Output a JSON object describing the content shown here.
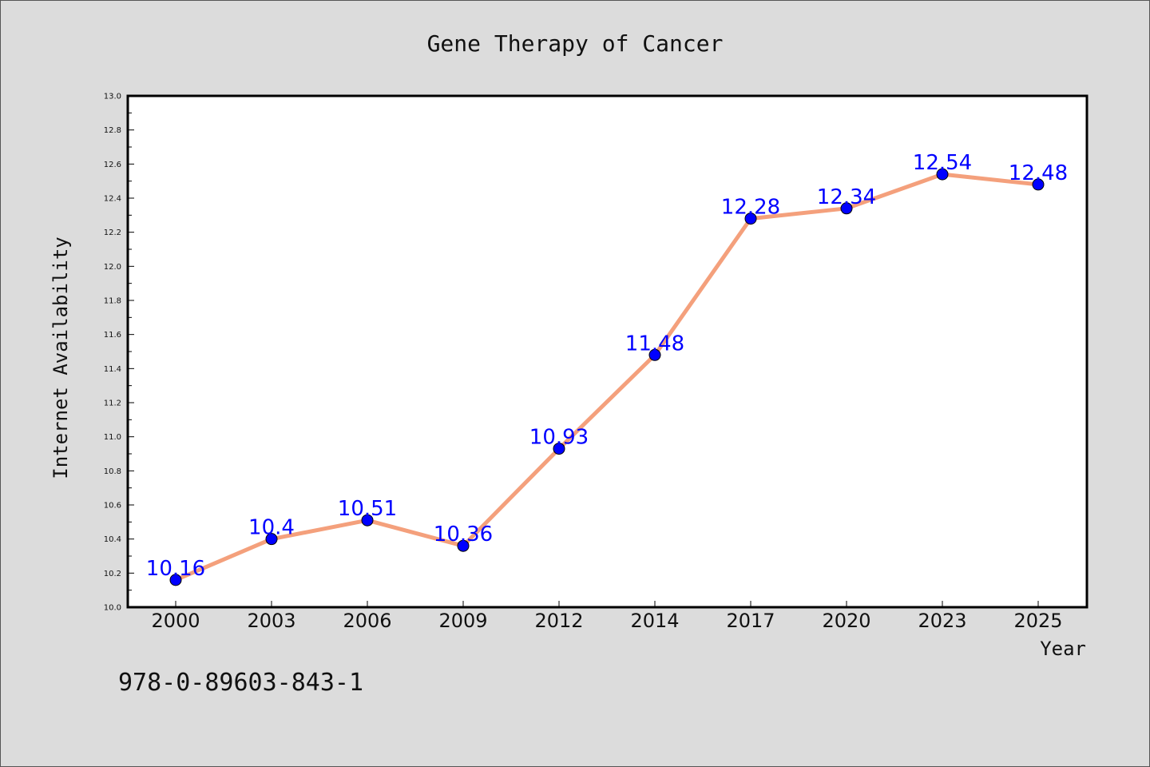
{
  "chart_data": {
    "type": "line",
    "title": "Gene Therapy of Cancer",
    "xlabel": "Year",
    "ylabel": "Internet Availability",
    "categories": [
      "2000",
      "2003",
      "2006",
      "2009",
      "2012",
      "2014",
      "2017",
      "2020",
      "2023",
      "2025"
    ],
    "series": [
      {
        "values": [
          10.16,
          10.4,
          10.51,
          10.36,
          10.93,
          11.48,
          12.28,
          12.34,
          12.54,
          12.48
        ],
        "labels": [
          "10.16",
          "10.4",
          "10.51",
          "10.36",
          "10.93",
          "11.48",
          "12.28",
          "12.34",
          "12.54",
          "12.48"
        ]
      }
    ],
    "ylim": [
      10.0,
      13.0
    ],
    "yticks": [
      "10.0",
      "10.2",
      "10.4",
      "10.6",
      "10.8",
      "11.0",
      "11.2",
      "11.4",
      "11.6",
      "11.8",
      "12.0",
      "12.2",
      "12.4",
      "12.6",
      "12.8",
      "13.0"
    ],
    "grid": false,
    "colors": {
      "line": "#f4a07c",
      "marker": "#0000ff",
      "data_label": "#0000ff",
      "plot_bg": "#ffffff",
      "figure_bg": "#dcdcdc"
    }
  },
  "footer_text": "978-0-89603-843-1"
}
